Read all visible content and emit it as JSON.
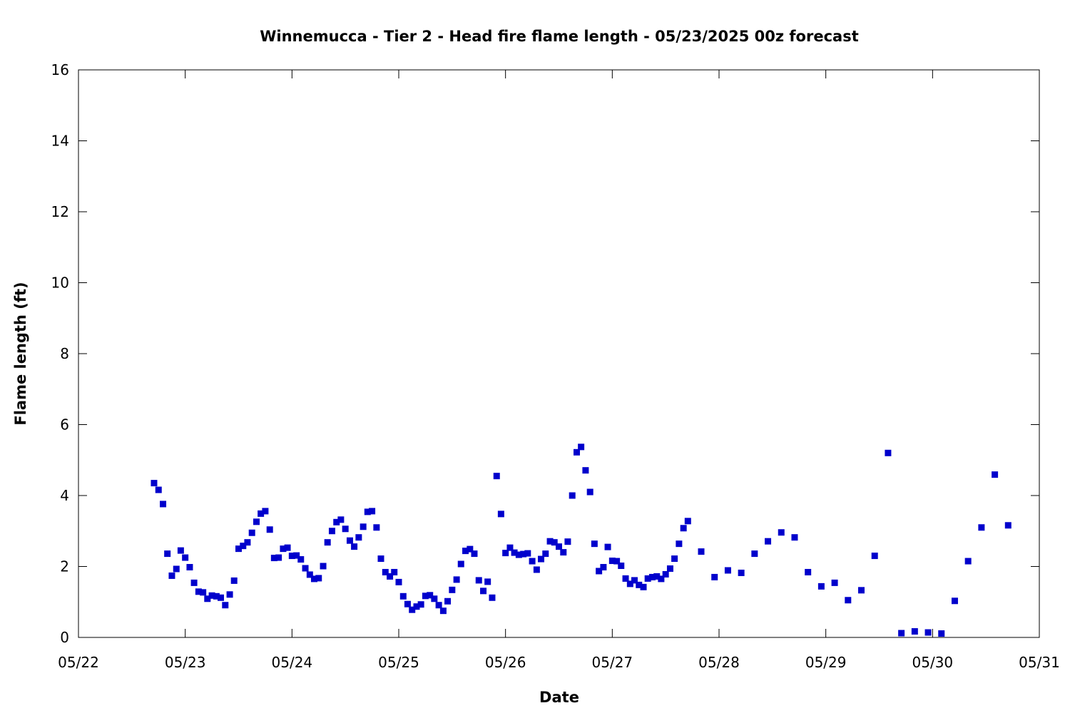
{
  "chart_data": {
    "type": "scatter",
    "title": "Winnemucca - Tier 2 - Head fire flame length - 05/23/2025 00z forecast",
    "xlabel": "Date",
    "ylabel": "Flame length (ft)",
    "x_unit": "day of May 2025",
    "xlim": [
      22,
      31
    ],
    "ylim": [
      0,
      16
    ],
    "x_ticks": [
      {
        "value": 22,
        "label": "05/22"
      },
      {
        "value": 23,
        "label": "05/23"
      },
      {
        "value": 24,
        "label": "05/24"
      },
      {
        "value": 25,
        "label": "05/25"
      },
      {
        "value": 26,
        "label": "05/26"
      },
      {
        "value": 27,
        "label": "05/27"
      },
      {
        "value": 28,
        "label": "05/28"
      },
      {
        "value": 29,
        "label": "05/29"
      },
      {
        "value": 30,
        "label": "05/30"
      },
      {
        "value": 31,
        "label": "05/31"
      }
    ],
    "y_ticks": [
      {
        "value": 0,
        "label": "0"
      },
      {
        "value": 2,
        "label": "2"
      },
      {
        "value": 4,
        "label": "4"
      },
      {
        "value": 6,
        "label": "6"
      },
      {
        "value": 8,
        "label": "8"
      },
      {
        "value": 10,
        "label": "10"
      },
      {
        "value": 12,
        "label": "12"
      },
      {
        "value": 14,
        "label": "14"
      },
      {
        "value": 16,
        "label": "16"
      }
    ],
    "grid": false,
    "marker_color": "#0000cc",
    "series": [
      {
        "points": [
          [
            22.708,
            4.35
          ],
          [
            22.75,
            4.16
          ],
          [
            22.792,
            3.76
          ],
          [
            22.833,
            2.36
          ],
          [
            22.875,
            1.74
          ],
          [
            22.917,
            1.93
          ],
          [
            22.958,
            2.45
          ],
          [
            23.0,
            2.25
          ],
          [
            23.042,
            1.98
          ],
          [
            23.083,
            1.54
          ],
          [
            23.125,
            1.29
          ],
          [
            23.167,
            1.27
          ],
          [
            23.208,
            1.09
          ],
          [
            23.25,
            1.18
          ],
          [
            23.292,
            1.16
          ],
          [
            23.333,
            1.12
          ],
          [
            23.375,
            0.91
          ],
          [
            23.417,
            1.21
          ],
          [
            23.458,
            1.6
          ],
          [
            23.5,
            2.5
          ],
          [
            23.542,
            2.58
          ],
          [
            23.583,
            2.68
          ],
          [
            23.625,
            2.95
          ],
          [
            23.667,
            3.26
          ],
          [
            23.708,
            3.49
          ],
          [
            23.75,
            3.56
          ],
          [
            23.792,
            3.04
          ],
          [
            23.833,
            2.24
          ],
          [
            23.875,
            2.25
          ],
          [
            23.917,
            2.5
          ],
          [
            23.958,
            2.53
          ],
          [
            24.0,
            2.3
          ],
          [
            24.042,
            2.31
          ],
          [
            24.083,
            2.2
          ],
          [
            24.125,
            1.95
          ],
          [
            24.167,
            1.77
          ],
          [
            24.208,
            1.65
          ],
          [
            24.25,
            1.67
          ],
          [
            24.292,
            2.01
          ],
          [
            24.333,
            2.68
          ],
          [
            24.375,
            3.0
          ],
          [
            24.417,
            3.25
          ],
          [
            24.458,
            3.32
          ],
          [
            24.5,
            3.06
          ],
          [
            24.542,
            2.73
          ],
          [
            24.583,
            2.56
          ],
          [
            24.625,
            2.82
          ],
          [
            24.667,
            3.12
          ],
          [
            24.708,
            3.54
          ],
          [
            24.75,
            3.56
          ],
          [
            24.792,
            3.1
          ],
          [
            24.833,
            2.22
          ],
          [
            24.875,
            1.84
          ],
          [
            24.917,
            1.72
          ],
          [
            24.958,
            1.84
          ],
          [
            25.0,
            1.56
          ],
          [
            25.042,
            1.16
          ],
          [
            25.083,
            0.94
          ],
          [
            25.125,
            0.78
          ],
          [
            25.167,
            0.87
          ],
          [
            25.208,
            0.93
          ],
          [
            25.25,
            1.17
          ],
          [
            25.292,
            1.19
          ],
          [
            25.333,
            1.09
          ],
          [
            25.375,
            0.91
          ],
          [
            25.417,
            0.75
          ],
          [
            25.458,
            1.02
          ],
          [
            25.5,
            1.34
          ],
          [
            25.542,
            1.63
          ],
          [
            25.583,
            2.07
          ],
          [
            25.625,
            2.44
          ],
          [
            25.667,
            2.49
          ],
          [
            25.708,
            2.36
          ],
          [
            25.75,
            1.61
          ],
          [
            25.792,
            1.31
          ],
          [
            25.833,
            1.57
          ],
          [
            25.875,
            1.12
          ],
          [
            25.917,
            4.55
          ],
          [
            25.958,
            3.48
          ],
          [
            26.0,
            2.38
          ],
          [
            26.042,
            2.53
          ],
          [
            26.083,
            2.39
          ],
          [
            26.125,
            2.33
          ],
          [
            26.167,
            2.35
          ],
          [
            26.208,
            2.37
          ],
          [
            26.25,
            2.15
          ],
          [
            26.292,
            1.91
          ],
          [
            26.333,
            2.21
          ],
          [
            26.375,
            2.36
          ],
          [
            26.417,
            2.71
          ],
          [
            26.458,
            2.68
          ],
          [
            26.5,
            2.56
          ],
          [
            26.542,
            2.4
          ],
          [
            26.583,
            2.7
          ],
          [
            26.625,
            4.0
          ],
          [
            26.667,
            5.22
          ],
          [
            26.708,
            5.37
          ],
          [
            26.75,
            4.71
          ],
          [
            26.792,
            4.1
          ],
          [
            26.833,
            2.64
          ],
          [
            26.875,
            1.87
          ],
          [
            26.917,
            1.98
          ],
          [
            26.958,
            2.55
          ],
          [
            27.0,
            2.16
          ],
          [
            27.042,
            2.15
          ],
          [
            27.083,
            2.02
          ],
          [
            27.125,
            1.66
          ],
          [
            27.167,
            1.51
          ],
          [
            27.208,
            1.61
          ],
          [
            27.25,
            1.48
          ],
          [
            27.292,
            1.42
          ],
          [
            27.333,
            1.66
          ],
          [
            27.375,
            1.7
          ],
          [
            27.417,
            1.72
          ],
          [
            27.458,
            1.65
          ],
          [
            27.5,
            1.78
          ],
          [
            27.542,
            1.94
          ],
          [
            27.583,
            2.22
          ],
          [
            27.625,
            2.64
          ],
          [
            27.667,
            3.08
          ],
          [
            27.708,
            3.28
          ],
          [
            27.833,
            2.42
          ],
          [
            27.958,
            1.7
          ],
          [
            28.083,
            1.89
          ],
          [
            28.208,
            1.82
          ],
          [
            28.333,
            2.36
          ],
          [
            28.458,
            2.71
          ],
          [
            28.583,
            2.96
          ],
          [
            28.708,
            2.82
          ],
          [
            28.833,
            1.84
          ],
          [
            28.958,
            1.44
          ],
          [
            29.083,
            1.54
          ],
          [
            29.208,
            1.05
          ],
          [
            29.333,
            1.33
          ],
          [
            29.458,
            2.3
          ],
          [
            29.583,
            5.2
          ],
          [
            29.708,
            0.12
          ],
          [
            29.833,
            0.17
          ],
          [
            29.958,
            0.14
          ],
          [
            30.083,
            0.11
          ],
          [
            30.208,
            1.03
          ],
          [
            30.333,
            2.15
          ],
          [
            30.458,
            3.1
          ],
          [
            30.583,
            4.59
          ],
          [
            30.708,
            3.16
          ]
        ]
      }
    ]
  }
}
